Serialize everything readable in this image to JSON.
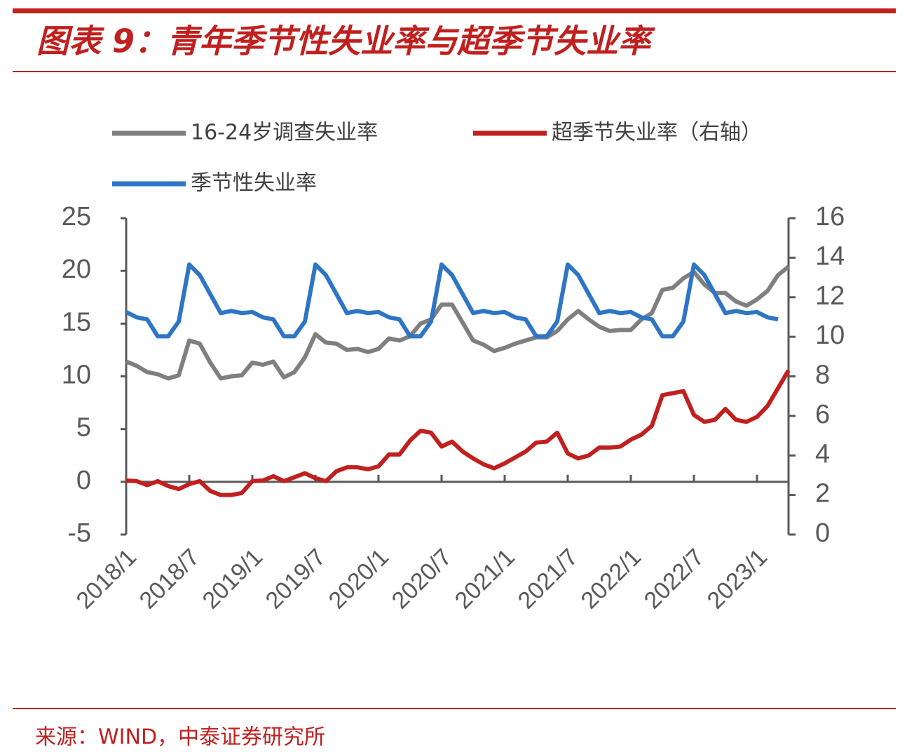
{
  "chart_data": {
    "type": "line",
    "title": "图表 9：青年季节性失业率与超季节失业率",
    "source": "来源：WIND，中泰证券研究所",
    "categories": [
      "2018/1",
      null,
      null,
      null,
      null,
      null,
      "2018/7",
      null,
      null,
      null,
      null,
      null,
      "2019/1",
      null,
      null,
      null,
      null,
      null,
      "2019/7",
      null,
      null,
      null,
      null,
      null,
      "2020/1",
      null,
      null,
      null,
      null,
      null,
      "2020/7",
      null,
      null,
      null,
      null,
      null,
      "2021/1",
      null,
      null,
      null,
      null,
      null,
      "2021/7",
      null,
      null,
      null,
      null,
      null,
      "2022/1",
      null,
      null,
      null,
      null,
      null,
      "2022/7",
      null,
      null,
      null,
      null,
      null,
      "2023/1",
      null,
      null,
      null
    ],
    "series": [
      {
        "name": "16-24岁调查失业率",
        "color": "#7f7f7f",
        "axis": "y",
        "values": [
          11.4,
          11.0,
          10.4,
          10.2,
          9.8,
          10.1,
          13.4,
          13.1,
          11.3,
          9.8,
          10.0,
          10.1,
          11.3,
          11.1,
          11.4,
          9.9,
          10.4,
          11.8,
          14.0,
          13.2,
          13.1,
          12.5,
          12.6,
          12.3,
          12.6,
          13.6,
          13.4,
          13.8,
          15.0,
          15.4,
          16.8,
          16.8,
          15.1,
          13.4,
          13.0,
          12.4,
          12.7,
          13.1,
          13.4,
          13.7,
          13.7,
          14.3,
          15.4,
          16.2,
          15.4,
          14.7,
          14.3,
          14.4,
          14.4,
          15.4,
          16.0,
          18.2,
          18.4,
          19.3,
          19.9,
          18.7,
          17.9,
          17.9,
          17.1,
          16.7,
          17.3,
          18.1,
          19.6,
          20.4
        ]
      },
      {
        "name": "超季节失业率（右轴）",
        "color": "#c0201e",
        "axis": "y2",
        "values": [
          2.73,
          2.7,
          2.5,
          2.7,
          2.45,
          2.3,
          2.55,
          2.7,
          2.2,
          2.0,
          2.0,
          2.1,
          2.7,
          2.73,
          2.95,
          2.7,
          2.9,
          3.1,
          2.85,
          2.7,
          3.2,
          3.4,
          3.4,
          3.3,
          3.45,
          4.05,
          4.05,
          4.75,
          5.25,
          5.15,
          4.45,
          4.7,
          4.2,
          3.85,
          3.55,
          3.35,
          3.6,
          3.9,
          4.2,
          4.65,
          4.7,
          5.15,
          4.1,
          3.85,
          4.0,
          4.4,
          4.4,
          4.45,
          4.8,
          5.05,
          5.5,
          7.05,
          7.15,
          7.25,
          6.05,
          5.7,
          5.8,
          6.35,
          5.8,
          5.7,
          5.95,
          6.5,
          7.4,
          8.3
        ]
      },
      {
        "name": "季节性失业率",
        "color": "#2e75c6",
        "axis": "y",
        "values": [
          16.1,
          15.6,
          15.4,
          13.8,
          13.8,
          15.2,
          20.6,
          19.6,
          17.8,
          16.0,
          16.2,
          16.0,
          16.1,
          15.6,
          15.4,
          13.8,
          13.8,
          15.2,
          20.6,
          19.6,
          17.8,
          16.0,
          16.2,
          16.0,
          16.1,
          15.6,
          15.4,
          13.8,
          13.8,
          15.2,
          20.6,
          19.6,
          17.8,
          16.0,
          16.2,
          16.0,
          16.1,
          15.6,
          15.4,
          13.8,
          13.8,
          15.2,
          20.6,
          19.6,
          17.8,
          16.0,
          16.2,
          16.0,
          16.1,
          15.6,
          15.4,
          13.8,
          13.8,
          15.2,
          20.6,
          19.6,
          17.8,
          16.0,
          16.2,
          16.0,
          16.1,
          15.6,
          15.4,
          null
        ]
      }
    ],
    "ylim": [
      -5,
      25
    ],
    "yticks": [
      -5,
      0,
      5,
      10,
      15,
      20,
      25
    ],
    "y2lim": [
      0,
      16
    ],
    "y2ticks": [
      0,
      2,
      4,
      6,
      8,
      10,
      12,
      14,
      16
    ]
  }
}
